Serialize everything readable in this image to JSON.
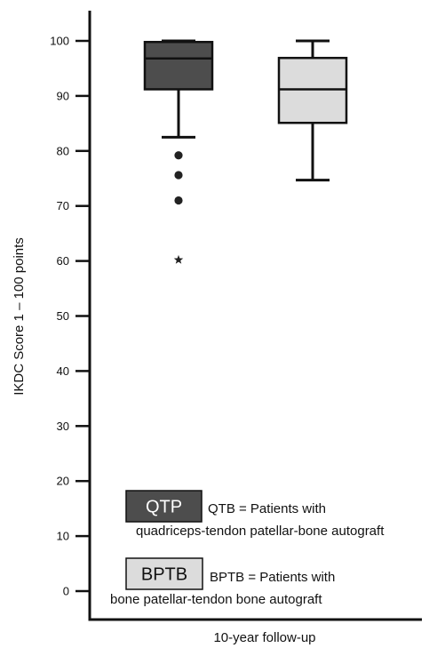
{
  "chart_data": {
    "type": "box",
    "ylabel": "IKDC Score 1 – 100 points",
    "xlabel": "10-year follow-up",
    "ylim": [
      0,
      100
    ],
    "yticks": [
      0,
      10,
      20,
      30,
      40,
      50,
      60,
      70,
      80,
      90,
      100
    ],
    "grid": false,
    "series": [
      {
        "name": "QTP",
        "min": 82.5,
        "q1": 91.2,
        "median": 96.8,
        "q3": 99.8,
        "max": 100,
        "outliers": [
          79.2,
          75.6,
          71.0
        ],
        "extremes": [
          60.2
        ],
        "color": "#4d4d4d"
      },
      {
        "name": "BPTB",
        "min": 74.7,
        "q1": 85.1,
        "median": 91.2,
        "q3": 96.9,
        "max": 100,
        "outliers": [],
        "extremes": [],
        "color": "#dcdcdc"
      }
    ],
    "legend": {
      "placement": "bottom-left",
      "entries": [
        {
          "label": "QTP",
          "line1": "QTB = Patients with",
          "line2": "quadriceps-tendon patellar-bone autograft",
          "color": "#4d4d4d",
          "text_color": "#ffffff"
        },
        {
          "label": "BPTB",
          "line1": "BPTB = Patients with",
          "line2": "bone patellar-tendon bone autograft",
          "color": "#dcdcdc",
          "text_color": "#111111"
        }
      ]
    }
  }
}
